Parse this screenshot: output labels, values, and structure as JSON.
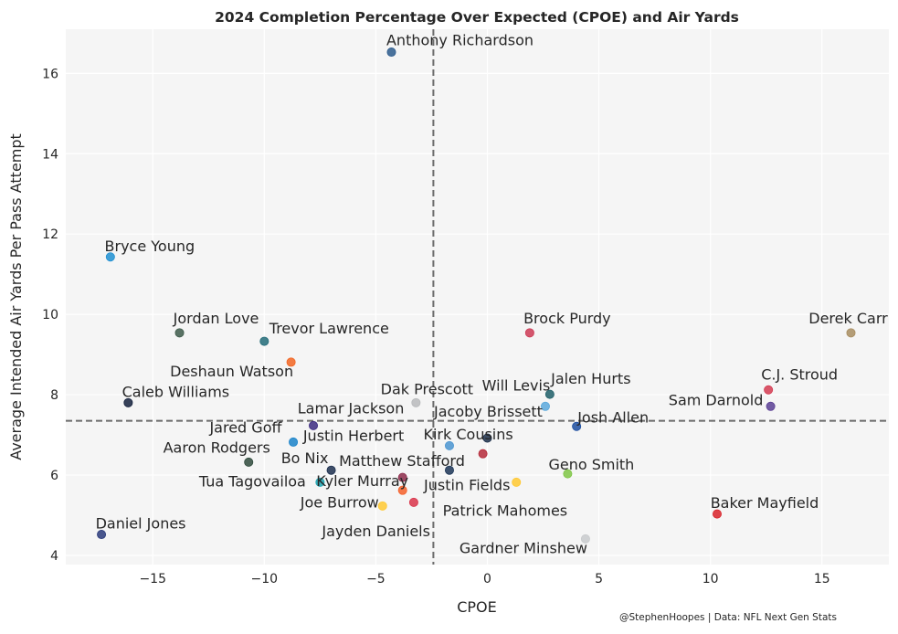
{
  "chart_data": {
    "type": "scatter",
    "title": "2024 Completion Percentage Over Expected (CPOE) and Air Yards",
    "xlabel": "CPOE",
    "ylabel": "Average Intended Air Yards Per Pass Attempt",
    "xlim": [
      -18.9,
      18.0
    ],
    "ylim": [
      3.77,
      17.1
    ],
    "xticks": [
      -15,
      -10,
      -5,
      0,
      5,
      10,
      15
    ],
    "xtick_labels": [
      "−15",
      "−10",
      "−5",
      "0",
      "5",
      "10",
      "15"
    ],
    "yticks": [
      4,
      6,
      8,
      10,
      12,
      14,
      16
    ],
    "ytick_labels": [
      "4",
      "6",
      "8",
      "10",
      "12",
      "14",
      "16"
    ],
    "grid": true,
    "reference_lines": {
      "mean_cpoe": -2.42,
      "mean_air_yards": 7.35
    },
    "credit": "@StephenHoopes | Data: NFL Next Gen Stats",
    "points": [
      {
        "name": "Anthony Richardson",
        "x": -4.3,
        "y": 16.53,
        "color": "#2b5a8c"
      },
      {
        "name": "Bryce Young",
        "x": -16.9,
        "y": 11.43,
        "color": "#1f8fd1"
      },
      {
        "name": "Jordan Love",
        "x": -13.8,
        "y": 9.54,
        "color": "#3d5a4a"
      },
      {
        "name": "Trevor Lawrence",
        "x": -10.0,
        "y": 9.33,
        "color": "#226b78"
      },
      {
        "name": "Deshaun Watson",
        "x": -8.8,
        "y": 8.81,
        "color": "#f26522"
      },
      {
        "name": "Caleb Williams",
        "x": -16.1,
        "y": 7.8,
        "color": "#14213d"
      },
      {
        "name": "Dak Prescott",
        "x": -3.2,
        "y": 7.8,
        "color": "#b8babc"
      },
      {
        "name": "Lamar Jackson",
        "x": -7.8,
        "y": 7.23,
        "color": "#3b2a80"
      },
      {
        "name": "Justin Herbert",
        "x": -8.7,
        "y": 6.82,
        "color": "#1a83c9"
      },
      {
        "name": "Jared Goff",
        "x": -1.7,
        "y": 6.73,
        "color": "#4a94d0"
      },
      {
        "name": "Aaron Rodgers",
        "x": -10.7,
        "y": 6.32,
        "color": "#2f4a3c"
      },
      {
        "name": "Bo Nix",
        "x": -7.0,
        "y": 6.12,
        "color": "#1c2f4f"
      },
      {
        "name": "Tua Tagovailoa",
        "x": -7.5,
        "y": 5.82,
        "color": "#1aa3b0"
      },
      {
        "name": "Jayden Daniels",
        "x": -3.8,
        "y": 5.94,
        "color": "#8c2a4a"
      },
      {
        "name": "Kyler Murray",
        "x": -3.8,
        "y": 5.62,
        "color": "#f4602a"
      },
      {
        "name": "Joe Burrow",
        "x": -4.7,
        "y": 5.23,
        "color": "#ffc933"
      },
      {
        "name": "Patrick Mahomes",
        "x": -3.3,
        "y": 5.32,
        "color": "#d9344a"
      },
      {
        "name": "Matthew Stafford",
        "x": -1.7,
        "y": 6.12,
        "color": "#1c3557"
      },
      {
        "name": "Kirk Cousins",
        "x": -0.2,
        "y": 6.53,
        "color": "#b52a3a"
      },
      {
        "name": "Jacoby Brissett",
        "x": 0.0,
        "y": 6.92,
        "color": "#1c2f4a"
      },
      {
        "name": "Justin Fields",
        "x": 1.3,
        "y": 5.82,
        "color": "#ffc830"
      },
      {
        "name": "Geno Smith",
        "x": 3.6,
        "y": 6.03,
        "color": "#7fc545"
      },
      {
        "name": "Josh Allen",
        "x": 4.0,
        "y": 7.21,
        "color": "#1c4ea0"
      },
      {
        "name": "Jalen Hurts",
        "x": 2.8,
        "y": 8.01,
        "color": "#1f5f68"
      },
      {
        "name": "Will Levis",
        "x": 2.6,
        "y": 7.71,
        "color": "#5aa8dc"
      },
      {
        "name": "Brock Purdy",
        "x": 1.9,
        "y": 9.54,
        "color": "#cc3a55"
      },
      {
        "name": "C.J. Stroud",
        "x": 12.6,
        "y": 8.12,
        "color": "#d33a50"
      },
      {
        "name": "Sam Darnold",
        "x": 12.7,
        "y": 7.71,
        "color": "#5b3f94"
      },
      {
        "name": "Derek Carr",
        "x": 16.3,
        "y": 9.54,
        "color": "#a88d60"
      },
      {
        "name": "Baker Mayfield",
        "x": 10.3,
        "y": 5.03,
        "color": "#d8232a"
      },
      {
        "name": "Gardner Minshew",
        "x": 4.4,
        "y": 4.41,
        "color": "#c8cacc"
      },
      {
        "name": "Daniel Jones",
        "x": -17.3,
        "y": 4.52,
        "color": "#2a3a7a"
      }
    ]
  }
}
